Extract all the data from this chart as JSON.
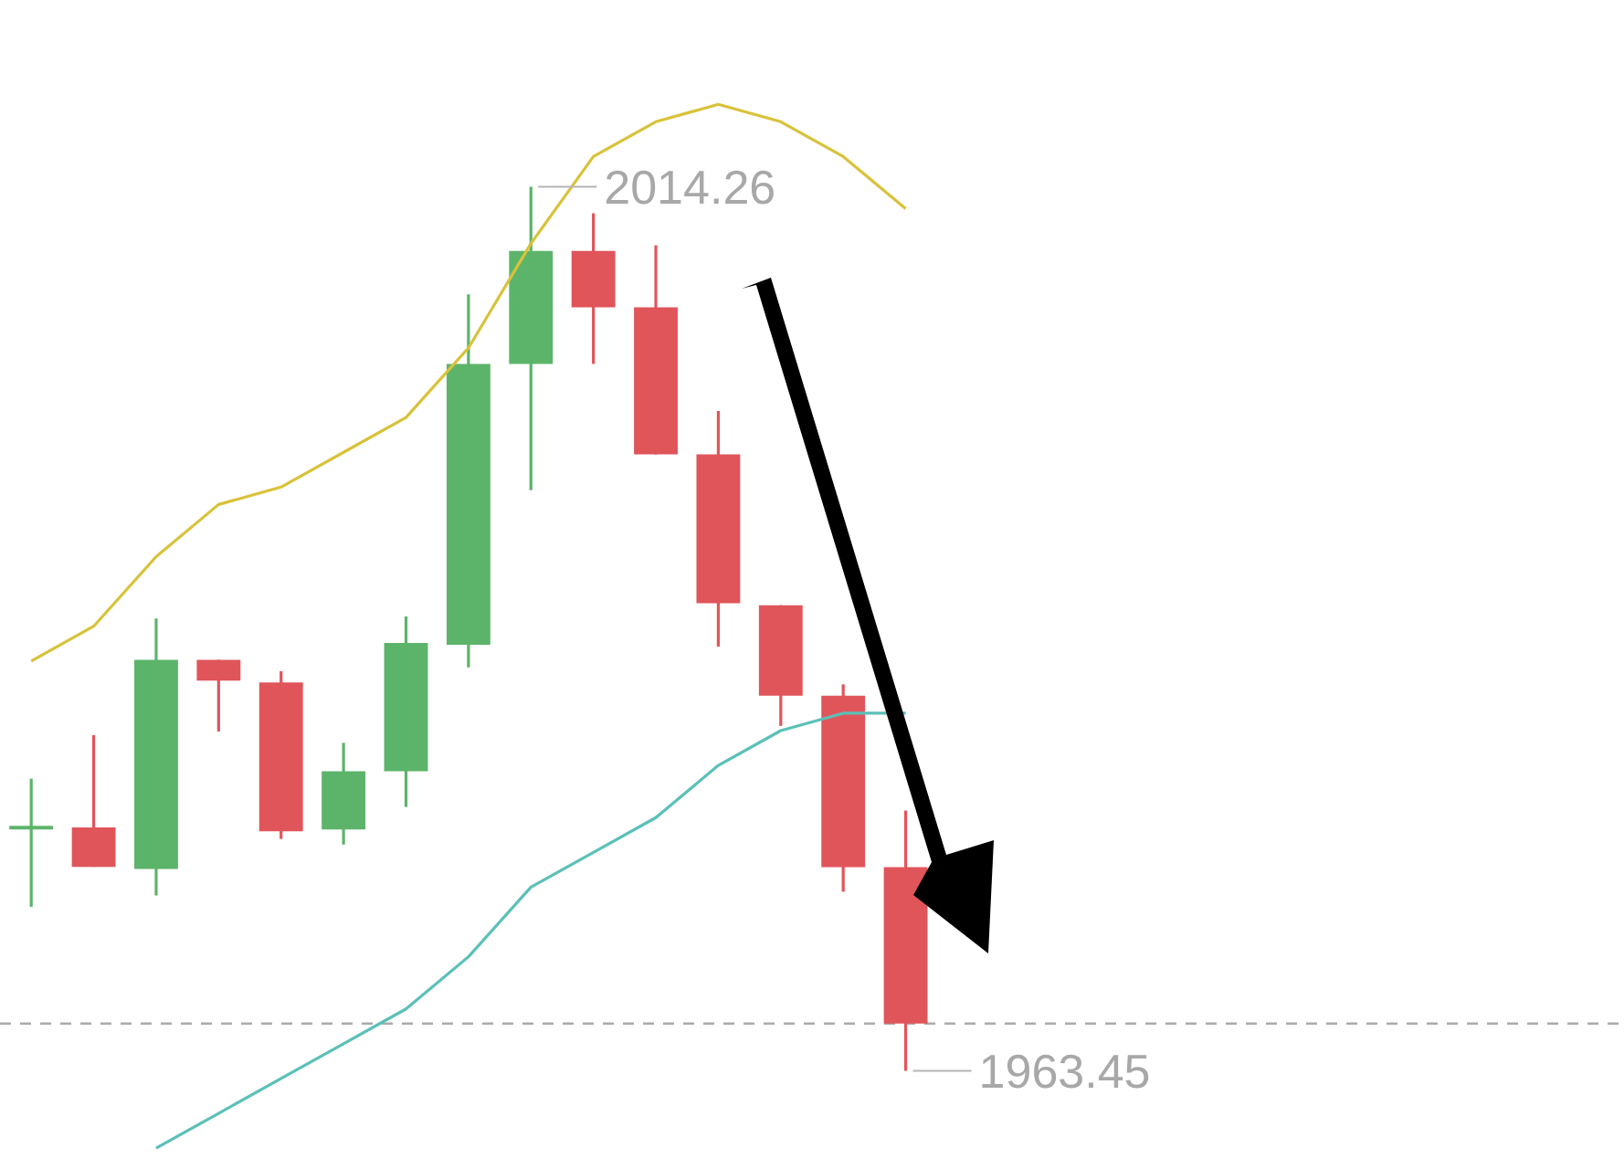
{
  "chart_data": {
    "type": "candlestick",
    "categories": [
      null,
      null,
      null,
      null,
      null,
      null,
      null,
      null,
      null,
      null,
      null,
      null,
      null,
      null,
      null,
      null,
      null,
      null,
      null,
      null,
      null,
      null,
      null,
      null,
      null,
      null
    ],
    "ohlc": [
      [
        1977.32,
        1980.24,
        1972.87,
        1977.52
      ],
      [
        1977.43,
        1982.74,
        1975.16,
        1975.16
      ],
      [
        1975.04,
        1989.45,
        1973.53,
        1987.07
      ],
      [
        1987.07,
        1987.07,
        1982.95,
        1985.87
      ],
      [
        1985.77,
        1986.42,
        1976.77,
        1977.21
      ],
      [
        1977.32,
        1982.3,
        1976.45,
        1980.67
      ],
      [
        1980.67,
        1989.56,
        1978.62,
        1988.04
      ],
      [
        1987.93,
        2008.08,
        1986.63,
        2004.08
      ],
      [
        2004.08,
        2014.26,
        1996.82,
        2010.58
      ],
      [
        2010.58,
        2012.74,
        2004.08,
        2007.33
      ],
      [
        2007.33,
        2010.9,
        1998.88,
        1998.88
      ],
      [
        1998.88,
        2001.37,
        1987.83,
        1990.32
      ],
      [
        1990.21,
        1990.21,
        1983.27,
        1985.01
      ],
      [
        1985.01,
        1985.66,
        1973.74,
        1975.15
      ],
      [
        1975.15,
        1978.4,
        1963.45,
        1966.16
      ],
      null,
      null,
      null,
      null,
      null,
      null,
      null,
      null,
      null,
      null,
      null
    ],
    "colors": [
      "#5cb46a",
      "#e0555a",
      "#5cb46a",
      "#e0555a",
      "#e0555a",
      "#5cb46a",
      "#5cb46a",
      "#5cb46a",
      "#5cb46a",
      "#e0555a",
      "#e0555a",
      "#e0555a",
      "#e0555a",
      "#e0555a",
      "#e0555a",
      null,
      null,
      null,
      null,
      null,
      null,
      null,
      null,
      null,
      null,
      null
    ],
    "series": [
      {
        "type": "line",
        "color": "#d9c23a",
        "values": [
          1987,
          1989,
          1993,
          1996,
          1997,
          1999,
          2001,
          2005,
          2011,
          2016,
          2018,
          2019,
          2018,
          2016,
          2013,
          null,
          null,
          null,
          null,
          null,
          null,
          null,
          null,
          null,
          null,
          null
        ]
      },
      {
        "type": "line",
        "color": "#5bc0b8",
        "values": [
          null,
          null,
          1959,
          1961,
          1963,
          1965,
          1967,
          1970,
          1974,
          1976,
          1978,
          1981,
          1983,
          1984,
          1984,
          null,
          null,
          null,
          null,
          null,
          null,
          null,
          null,
          null,
          null,
          null
        ]
      }
    ],
    "marker": "none",
    "ref_lines": [
      {
        "axis": "y",
        "value": 1966.16,
        "color": "#aaaaaa",
        "line_style": "dashed"
      }
    ],
    "annotations": [
      "2014.26",
      "1963.45"
    ]
  }
}
